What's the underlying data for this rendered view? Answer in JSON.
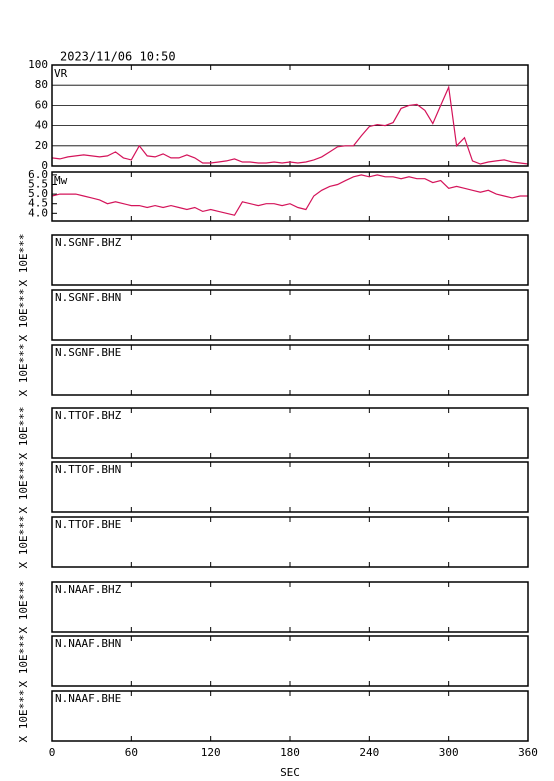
{
  "chart_data": [
    {
      "type": "line",
      "title": "2023/11/06 10:50",
      "label": "VR",
      "color": "#d4145a",
      "x": [
        0,
        6,
        12,
        18,
        24,
        30,
        36,
        42,
        48,
        54,
        60,
        66,
        72,
        78,
        84,
        90,
        96,
        102,
        108,
        114,
        120,
        126,
        132,
        138,
        144,
        150,
        156,
        162,
        168,
        174,
        180,
        186,
        192,
        198,
        204,
        210,
        216,
        222,
        228,
        234,
        240,
        246,
        252,
        258,
        264,
        270,
        276,
        282,
        288,
        294,
        300,
        306,
        312,
        318,
        324,
        330,
        336,
        342,
        348,
        354,
        360
      ],
      "values": [
        8,
        7,
        9,
        10,
        11,
        10,
        9,
        10,
        14,
        8,
        6,
        20,
        10,
        9,
        12,
        8,
        8,
        11,
        8,
        3,
        3,
        4,
        5,
        7,
        4,
        4,
        3,
        3,
        4,
        3,
        4,
        3,
        4,
        6,
        9,
        14,
        19,
        20,
        20,
        30,
        39,
        41,
        40,
        43,
        57,
        60,
        61,
        55,
        42,
        60,
        78,
        20,
        28,
        5,
        2,
        4,
        5,
        6,
        4,
        3,
        2
      ],
      "ylim": [
        0,
        100
      ],
      "yticks": [
        0,
        20,
        40,
        60,
        80,
        100
      ],
      "grid": true
    },
    {
      "type": "line",
      "label": "Mw",
      "color": "#d4145a",
      "x": [
        0,
        6,
        12,
        18,
        24,
        30,
        36,
        42,
        48,
        54,
        60,
        66,
        72,
        78,
        84,
        90,
        96,
        102,
        108,
        114,
        120,
        126,
        132,
        138,
        144,
        150,
        156,
        162,
        168,
        174,
        180,
        186,
        192,
        198,
        204,
        210,
        216,
        222,
        228,
        234,
        240,
        246,
        252,
        258,
        264,
        270,
        276,
        282,
        288,
        294,
        300,
        306,
        312,
        318,
        324,
        330,
        336,
        342,
        348,
        354,
        360
      ],
      "values": [
        4.9,
        5.0,
        5.0,
        5.0,
        4.9,
        4.8,
        4.7,
        4.5,
        4.6,
        4.5,
        4.4,
        4.4,
        4.3,
        4.4,
        4.3,
        4.4,
        4.3,
        4.2,
        4.3,
        4.1,
        4.2,
        4.1,
        4.0,
        3.9,
        4.6,
        4.5,
        4.4,
        4.5,
        4.5,
        4.4,
        4.5,
        4.3,
        4.2,
        4.9,
        5.2,
        5.4,
        5.5,
        5.7,
        5.9,
        6.0,
        5.9,
        6.0,
        5.9,
        5.9,
        5.8,
        5.9,
        5.8,
        5.8,
        5.6,
        5.7,
        5.3,
        5.4,
        5.3,
        5.2,
        5.1,
        5.2,
        5.0,
        4.9,
        4.8,
        4.9,
        4.9
      ],
      "ylim": [
        3.6,
        6.15
      ],
      "yticks": [
        {
          "value": 4,
          "label": "4.0"
        },
        4.5,
        {
          "value": 5,
          "label": "5.0"
        },
        5.5,
        {
          "value": 6,
          "label": "6.0"
        }
      ],
      "grid": false
    }
  ],
  "x_axis": {
    "xlim": [
      0,
      360
    ],
    "xticks": [
      0,
      60,
      120,
      180,
      240,
      300,
      360
    ],
    "label": "SEC"
  },
  "panels": [
    {
      "label": "N.SGNF.BHZ",
      "y_label": "X 10E***"
    },
    {
      "label": "N.SGNF.BHN",
      "y_label": "X 10E***"
    },
    {
      "label": "N.SGNF.BHE",
      "y_label": "X 10E***"
    },
    {
      "label": "N.TTOF.BHZ",
      "y_label": "X 10E***"
    },
    {
      "label": "N.TTOF.BHN",
      "y_label": "X 10E***"
    },
    {
      "label": "N.TTOF.BHE",
      "y_label": "X 10E***"
    },
    {
      "label": "N.NAAF.BHZ",
      "y_label": "X 10E***"
    },
    {
      "label": "N.NAAF.BHN",
      "y_label": "X 10E***"
    },
    {
      "label": "N.NAAF.BHE",
      "y_label": "X 10E***"
    }
  ]
}
